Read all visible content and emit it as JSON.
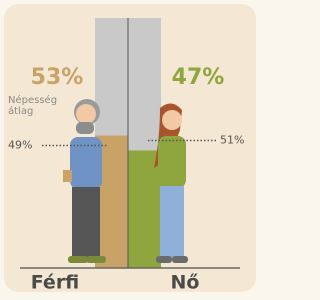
{
  "chart_data": {
    "type": "bar",
    "categories": [
      "Férfi",
      "Nő"
    ],
    "values": [
      53,
      47
    ],
    "value_labels": [
      "53%",
      "47%"
    ],
    "colors": [
      "#c8a267",
      "#8fa53e"
    ],
    "background_color": "#c9c9c9",
    "ylim": [
      0,
      100
    ],
    "reference_label": [
      "Népesség",
      "átlag"
    ],
    "reference_values": [
      49,
      51
    ],
    "reference_labels": [
      "49%",
      "51%"
    ]
  }
}
